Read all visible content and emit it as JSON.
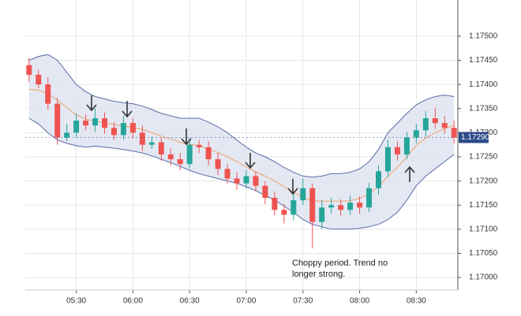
{
  "chart_data": {
    "type": "candlestick",
    "annotation": "Choppy period. Trend no longer strong.",
    "x": [
      "05:05",
      "05:10",
      "05:15",
      "05:20",
      "05:25",
      "05:30",
      "05:35",
      "05:40",
      "05:45",
      "05:50",
      "05:55",
      "06:00",
      "06:05",
      "06:10",
      "06:15",
      "06:20",
      "06:25",
      "06:30",
      "06:35",
      "06:40",
      "06:45",
      "06:50",
      "06:55",
      "07:00",
      "07:05",
      "07:10",
      "07:15",
      "07:20",
      "07:25",
      "07:30",
      "07:35",
      "07:40",
      "07:45",
      "07:50",
      "07:55",
      "08:00",
      "08:05",
      "08:10",
      "08:15",
      "08:20",
      "08:25",
      "08:30",
      "08:35",
      "08:40",
      "08:45",
      "08:50"
    ],
    "open": [
      1.1744,
      1.1742,
      1.174,
      1.1736,
      1.1729,
      1.173,
      1.17325,
      1.17315,
      1.1733,
      1.1731,
      1.17295,
      1.1732,
      1.173,
      1.17275,
      1.1728,
      1.17255,
      1.17245,
      1.17235,
      1.17275,
      1.1727,
      1.17245,
      1.17225,
      1.17205,
      1.17195,
      1.1721,
      1.1719,
      1.17165,
      1.1714,
      1.1713,
      1.1716,
      1.17185,
      1.17115,
      1.17145,
      1.1715,
      1.1714,
      1.17155,
      1.17145,
      1.17185,
      1.1722,
      1.1727,
      1.17255,
      1.1729,
      1.17305,
      1.1733,
      1.1732,
      1.1731
    ],
    "high": [
      1.17455,
      1.1743,
      1.17415,
      1.17372,
      1.17318,
      1.1734,
      1.17338,
      1.1735,
      1.17342,
      1.17322,
      1.17335,
      1.1733,
      1.17315,
      1.17292,
      1.1729,
      1.17268,
      1.17258,
      1.1729,
      1.17285,
      1.17282,
      1.17258,
      1.17236,
      1.17218,
      1.17222,
      1.1722,
      1.172,
      1.17178,
      1.17152,
      1.17175,
      1.17205,
      1.17195,
      1.1716,
      1.17165,
      1.17162,
      1.1717,
      1.17168,
      1.17196,
      1.17232,
      1.17285,
      1.17282,
      1.17302,
      1.17318,
      1.17345,
      1.17352,
      1.17335,
      1.17325
    ],
    "low": [
      1.17405,
      1.17392,
      1.17348,
      1.17275,
      1.17282,
      1.1729,
      1.17305,
      1.17302,
      1.17298,
      1.17285,
      1.17286,
      1.17288,
      1.17262,
      1.17266,
      1.17242,
      1.17232,
      1.17222,
      1.17226,
      1.17258,
      1.17232,
      1.17212,
      1.17194,
      1.17182,
      1.17184,
      1.17178,
      1.17152,
      1.17128,
      1.17112,
      1.17118,
      1.1715,
      1.1706,
      1.171,
      1.17132,
      1.17128,
      1.1713,
      1.17132,
      1.17135,
      1.17172,
      1.17208,
      1.17242,
      1.17245,
      1.17278,
      1.17292,
      1.17308,
      1.17298,
      1.17278
    ],
    "close": [
      1.1742,
      1.174,
      1.1736,
      1.1729,
      1.173,
      1.17325,
      1.17315,
      1.1733,
      1.1731,
      1.17295,
      1.1732,
      1.173,
      1.17275,
      1.1728,
      1.17255,
      1.17245,
      1.17235,
      1.17275,
      1.1727,
      1.17245,
      1.17225,
      1.17205,
      1.17195,
      1.1721,
      1.1719,
      1.17165,
      1.1714,
      1.1713,
      1.1716,
      1.17185,
      1.17115,
      1.17145,
      1.1715,
      1.1714,
      1.17155,
      1.17145,
      1.17185,
      1.1722,
      1.1727,
      1.17255,
      1.1729,
      1.17305,
      1.1733,
      1.1732,
      1.1731,
      1.1729
    ],
    "up_color": "#26a69a",
    "down_color": "#ef5350",
    "upper_band": [
      1.1745,
      1.17458,
      1.17462,
      1.1745,
      1.17425,
      1.174,
      1.17385,
      1.17375,
      1.1737,
      1.17365,
      1.17362,
      1.1736,
      1.17355,
      1.17348,
      1.1734,
      1.17335,
      1.1733,
      1.1733,
      1.1733,
      1.17322,
      1.17312,
      1.173,
      1.17285,
      1.1727,
      1.17258,
      1.1725,
      1.1724,
      1.17228,
      1.17218,
      1.1721,
      1.17208,
      1.1721,
      1.17215,
      1.17215,
      1.17218,
      1.17225,
      1.1724,
      1.17265,
      1.173,
      1.1732,
      1.1734,
      1.17358,
      1.17368,
      1.17375,
      1.17378,
      1.17375
    ],
    "middle_band": [
      1.1739,
      1.17388,
      1.17381,
      1.17368,
      1.17352,
      1.17337,
      1.17328,
      1.17324,
      1.1732,
      1.17317,
      1.17314,
      1.17311,
      1.17307,
      1.173,
      1.17293,
      1.17287,
      1.1728,
      1.17276,
      1.17273,
      1.17266,
      1.17259,
      1.1725,
      1.1724,
      1.17229,
      1.17219,
      1.1721,
      1.172,
      1.17188,
      1.17177,
      1.17165,
      1.17159,
      1.17158,
      1.17158,
      1.17158,
      1.17159,
      1.17164,
      1.17173,
      1.17188,
      1.1721,
      1.17228,
      1.1725,
      1.17274,
      1.17289,
      1.173,
      1.17309,
      1.17315
    ],
    "lower_band": [
      1.1733,
      1.17318,
      1.173,
      1.17285,
      1.17278,
      1.17273,
      1.1727,
      1.17272,
      1.1727,
      1.17268,
      1.17265,
      1.17262,
      1.17258,
      1.17252,
      1.17245,
      1.17238,
      1.1723,
      1.17222,
      1.17215,
      1.1721,
      1.17205,
      1.172,
      1.17195,
      1.17188,
      1.1718,
      1.1717,
      1.1716,
      1.17148,
      1.17135,
      1.1712,
      1.1711,
      1.17105,
      1.171,
      1.171,
      1.171,
      1.17102,
      1.17105,
      1.1711,
      1.1712,
      1.17135,
      1.1716,
      1.1719,
      1.1721,
      1.17225,
      1.1724,
      1.17255
    ],
    "band_color": "#5b6aa8",
    "band_fill": "#dfe4f1",
    "middle_color": "#f0a36a",
    "xlim": [
      "05:03",
      "08:52"
    ],
    "xticks": [
      "05:30",
      "06:00",
      "06:30",
      "07:00",
      "07:30",
      "08:00",
      "08:30"
    ],
    "ylim": [
      1.16974,
      1.17575
    ],
    "yticks": [
      {
        "value": 1.17,
        "label": "1.17000"
      },
      {
        "value": 1.1705,
        "label": "1.17050"
      },
      {
        "value": 1.171,
        "label": "1.17100"
      },
      {
        "value": 1.1715,
        "label": "1.17150"
      },
      {
        "value": 1.172,
        "label": "1.17200"
      },
      {
        "value": 1.1725,
        "label": "1.17250"
      },
      {
        "value": 1.173,
        "label": "1.17300"
      },
      {
        "value": 1.1735,
        "label": "1.17350"
      },
      {
        "value": 1.174,
        "label": "1.17400"
      },
      {
        "value": 1.1745,
        "label": "1.17450"
      },
      {
        "value": 1.175,
        "label": "1.17500"
      }
    ],
    "last_price": {
      "value": 1.1729,
      "label": "1.17290"
    },
    "last_price_color": "#2d4a8a",
    "grid": true
  }
}
